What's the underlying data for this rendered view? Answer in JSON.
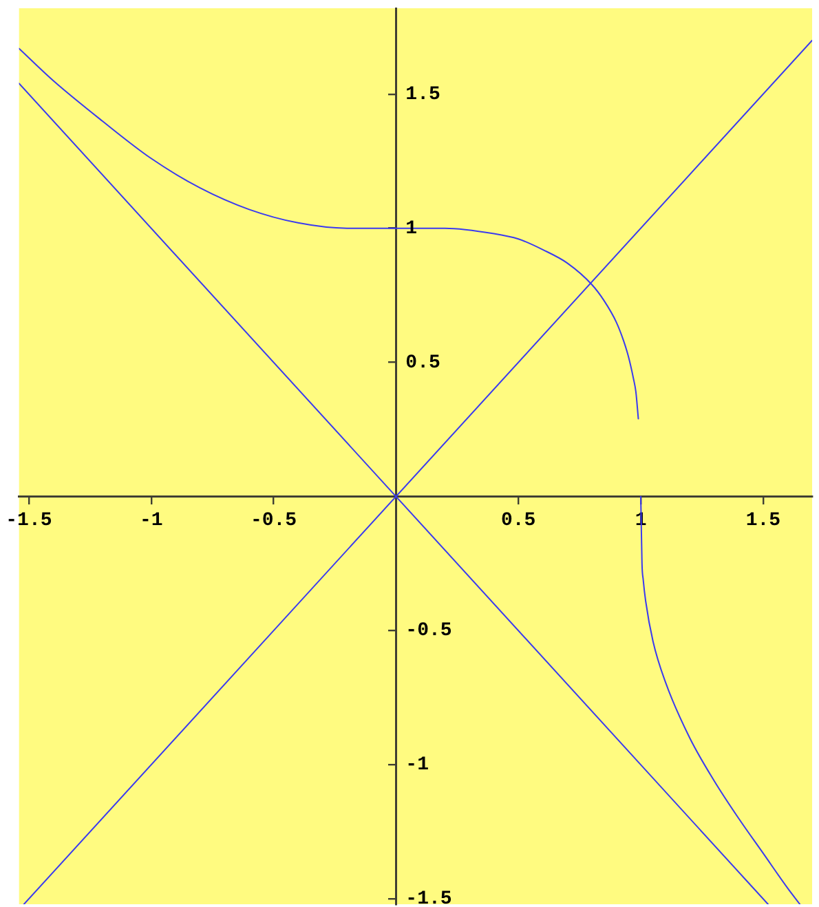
{
  "chart_data": {
    "type": "line",
    "series": [
      {
        "color": "#3a3af0",
        "x": [
          -1.52,
          1.7
        ],
        "values": [
          -1.52,
          1.7
        ]
      },
      {
        "color": "#3a3af0",
        "x": [
          -1.54,
          1.52
        ],
        "values": [
          1.54,
          -1.52
        ]
      },
      {
        "color": "#3a3af0",
        "x": [
          -1.54,
          -1.4,
          -1.2,
          -1,
          -0.8,
          -0.6,
          -0.4,
          -0.2,
          0,
          0.2,
          0.4,
          0.5,
          0.6,
          0.7,
          0.8,
          0.85,
          0.9,
          0.93,
          0.95,
          0.97,
          0.98,
          0.99
        ],
        "values": [
          1.67,
          1.55,
          1.4,
          1.26,
          1.15,
          1.07,
          1.02,
          1.0,
          1,
          1.0,
          0.98,
          0.96,
          0.92,
          0.87,
          0.79,
          0.73,
          0.65,
          0.58,
          0.52,
          0.44,
          0.39,
          0.29
        ]
      },
      {
        "color": "#3a3af0",
        "x": [
          1,
          1.005,
          1.01,
          1.02,
          1.05,
          1.1,
          1.2,
          1.3,
          1.4,
          1.5,
          1.6,
          1.65
        ],
        "values": [
          0,
          -0.25,
          -0.31,
          -0.39,
          -0.54,
          -0.69,
          -0.9,
          -1.06,
          -1.2,
          -1.33,
          -1.46,
          -1.52
        ]
      }
    ],
    "xlim": [
      -1.54,
      1.7
    ],
    "ylim": [
      -1.52,
      1.82
    ],
    "xticks": [
      -1.5,
      -1,
      -0.5,
      0.5,
      1,
      1.5
    ],
    "yticks": [
      -1.5,
      -1,
      -0.5,
      0.5,
      1,
      1.5
    ],
    "marker": "none",
    "line_style": "solid"
  }
}
